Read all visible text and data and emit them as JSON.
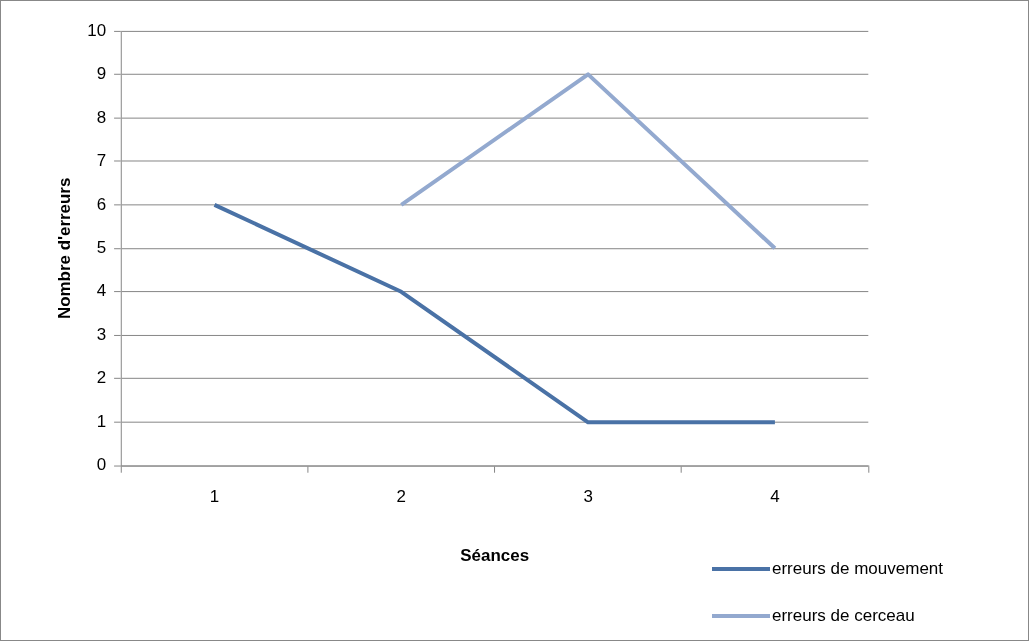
{
  "chart_data": {
    "type": "line",
    "xlabel": "Séances",
    "ylabel": "Nombre d'erreurs",
    "categories": [
      "1",
      "2",
      "3",
      "4"
    ],
    "series": [
      {
        "name": "erreurs de mouvement",
        "color": "#4a72a6",
        "values": [
          6,
          4,
          1,
          1
        ]
      },
      {
        "name": "erreurs de cerceau",
        "color": "#93a9cf",
        "values": [
          null,
          6,
          9,
          5
        ]
      }
    ],
    "ylim": [
      0,
      10
    ],
    "yticks": [
      0,
      1,
      2,
      3,
      4,
      5,
      6,
      7,
      8,
      9,
      10
    ],
    "grid": "y",
    "legend": "bottom right",
    "marker": "none",
    "line_style": "solid"
  }
}
